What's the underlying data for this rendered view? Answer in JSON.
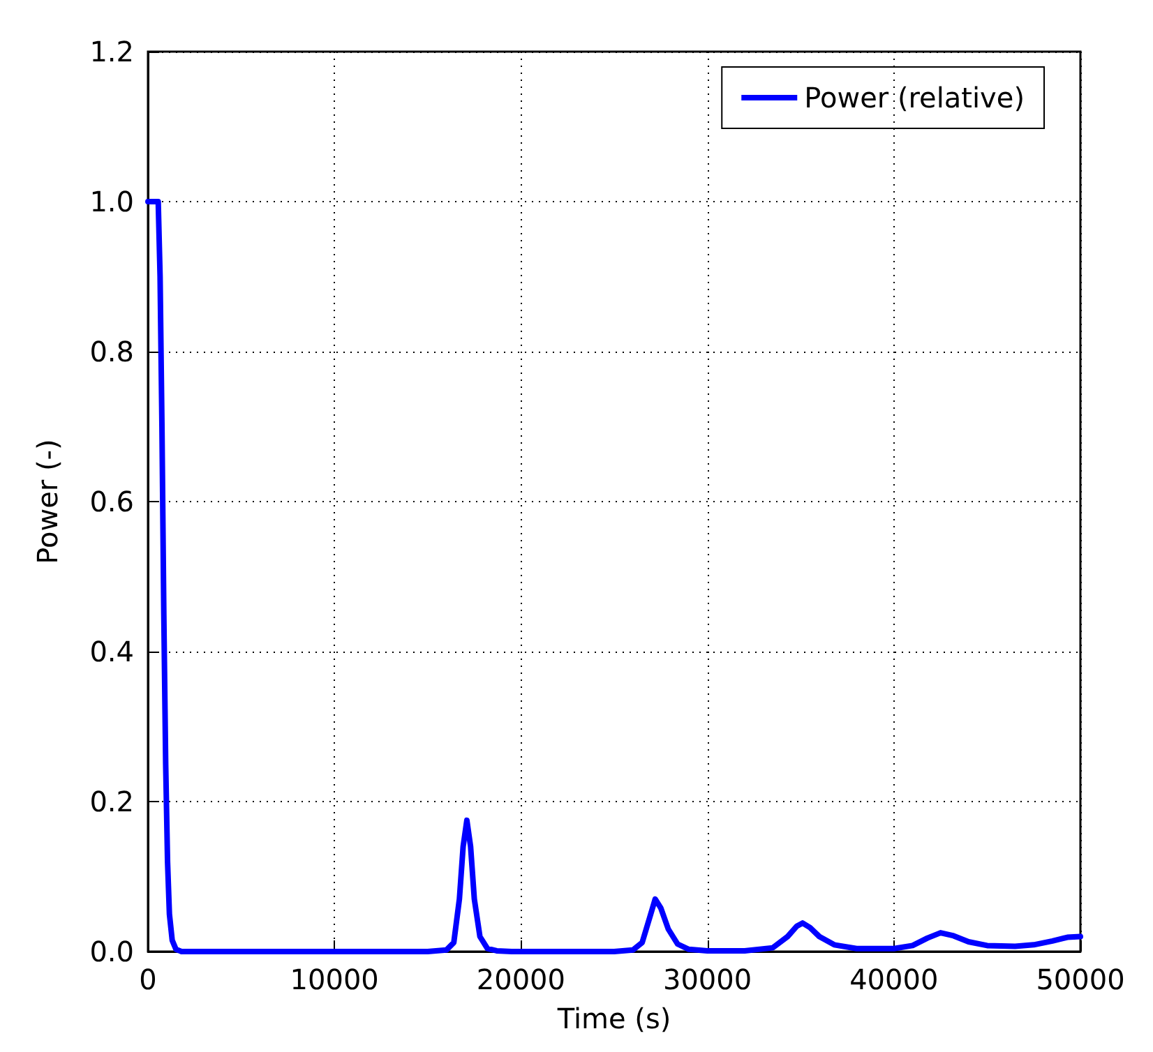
{
  "chart_data": {
    "type": "line",
    "xlabel": "Time (s)",
    "ylabel": "Power (-)",
    "xlim": [
      0,
      50000
    ],
    "ylim": [
      0,
      1.2
    ],
    "xticks": [
      0,
      10000,
      20000,
      30000,
      40000,
      50000
    ],
    "yticks": [
      {
        "value": 0,
        "label": "0.0"
      },
      0.2,
      0.4,
      0.6,
      0.8,
      {
        "value": 1,
        "label": "1.0"
      },
      1.2
    ],
    "grid": true,
    "legend": "top right",
    "line_style": "solid",
    "marker": "none",
    "series": [
      {
        "name": "Power (relative)",
        "color": "#0000ff",
        "x": [
          0,
          300,
          550,
          650,
          750,
          850,
          950,
          1050,
          1150,
          1300,
          1500,
          1800,
          2500,
          5000,
          10000,
          15000,
          16000,
          16400,
          16700,
          16900,
          17100,
          17300,
          17500,
          17800,
          18200,
          18700,
          19500,
          22000,
          25000,
          26000,
          26500,
          26900,
          27200,
          27500,
          27900,
          28400,
          29000,
          30000,
          32000,
          33500,
          34300,
          34800,
          35100,
          35500,
          36000,
          36800,
          38000,
          40000,
          41000,
          41800,
          42500,
          43200,
          44000,
          45000,
          46500,
          47500,
          48500,
          49300,
          50000
        ],
        "values": [
          1.0,
          1.0,
          1.0,
          0.9,
          0.7,
          0.45,
          0.25,
          0.12,
          0.05,
          0.015,
          0.003,
          0.0,
          0.0,
          0.0,
          0.0,
          0.0,
          0.002,
          0.012,
          0.07,
          0.14,
          0.175,
          0.14,
          0.07,
          0.02,
          0.004,
          0.001,
          0.0,
          0.0,
          0.0,
          0.002,
          0.012,
          0.045,
          0.07,
          0.058,
          0.03,
          0.01,
          0.003,
          0.001,
          0.001,
          0.005,
          0.02,
          0.034,
          0.038,
          0.032,
          0.02,
          0.009,
          0.004,
          0.004,
          0.008,
          0.018,
          0.025,
          0.021,
          0.013,
          0.008,
          0.007,
          0.009,
          0.014,
          0.019,
          0.02
        ]
      }
    ]
  }
}
